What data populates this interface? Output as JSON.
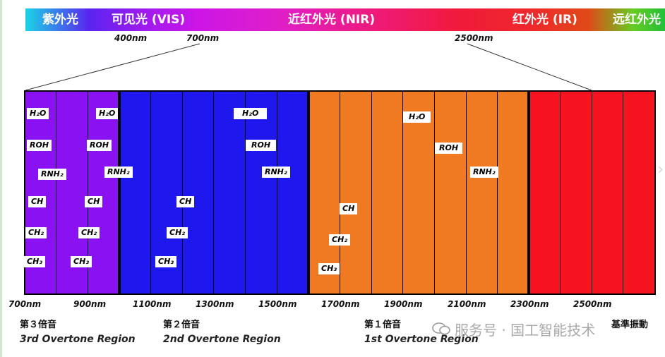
{
  "spectrum": {
    "uv_cn": "紫外光",
    "vis": "可见光 (VIS)",
    "nir": "近红外光 (NIR)",
    "ir": "红外光 (IR)",
    "far_ir_cn": "远红外光"
  },
  "top_ticks": {
    "t400": "400nm",
    "t700": "700nm",
    "t2500": "2500nm"
  },
  "bands": [
    {
      "label": "H₂O"
    },
    {
      "label": "ROH"
    },
    {
      "label": "RNH₂"
    },
    {
      "label": "CH"
    },
    {
      "label": "CH₂"
    },
    {
      "label": "CH₃"
    },
    {
      "label": "H₂O"
    },
    {
      "label": "ROH"
    },
    {
      "label": "RNH₂"
    },
    {
      "label": "CH"
    },
    {
      "label": "CH₂"
    },
    {
      "label": "CH₃"
    },
    {
      "label": "CH"
    },
    {
      "label": "CH₂"
    },
    {
      "label": "CH₃"
    },
    {
      "label": "H₂O"
    },
    {
      "label": "ROH"
    },
    {
      "label": "RNH₂"
    },
    {
      "label": "CH"
    },
    {
      "label": "CH₂"
    },
    {
      "label": "CH₃"
    },
    {
      "label": "H₂O"
    },
    {
      "label": "ROH"
    },
    {
      "label": "RNH₂"
    }
  ],
  "x_axis": [
    "700nm",
    "900nm",
    "1100nm",
    "1300nm",
    "1500nm",
    "1700nm",
    "1900nm",
    "2100nm",
    "2300nm",
    "2500nm"
  ],
  "overtones": {
    "third_cn": "第３倍音",
    "third_en": "3rd Overtone Region",
    "second_cn": "第２倍音",
    "second_en": "2nd Overtone Region",
    "first_cn": "第１倍音",
    "first_en": "1st Overtone Region",
    "fundamental_cn": "基準振動"
  },
  "watermark": {
    "text": "服务号 · 国工智能技术"
  },
  "colors": {
    "third": "#8a12f2",
    "second": "#1f18ee",
    "first": "#f07a22",
    "fundamental": "#f4131e"
  }
}
